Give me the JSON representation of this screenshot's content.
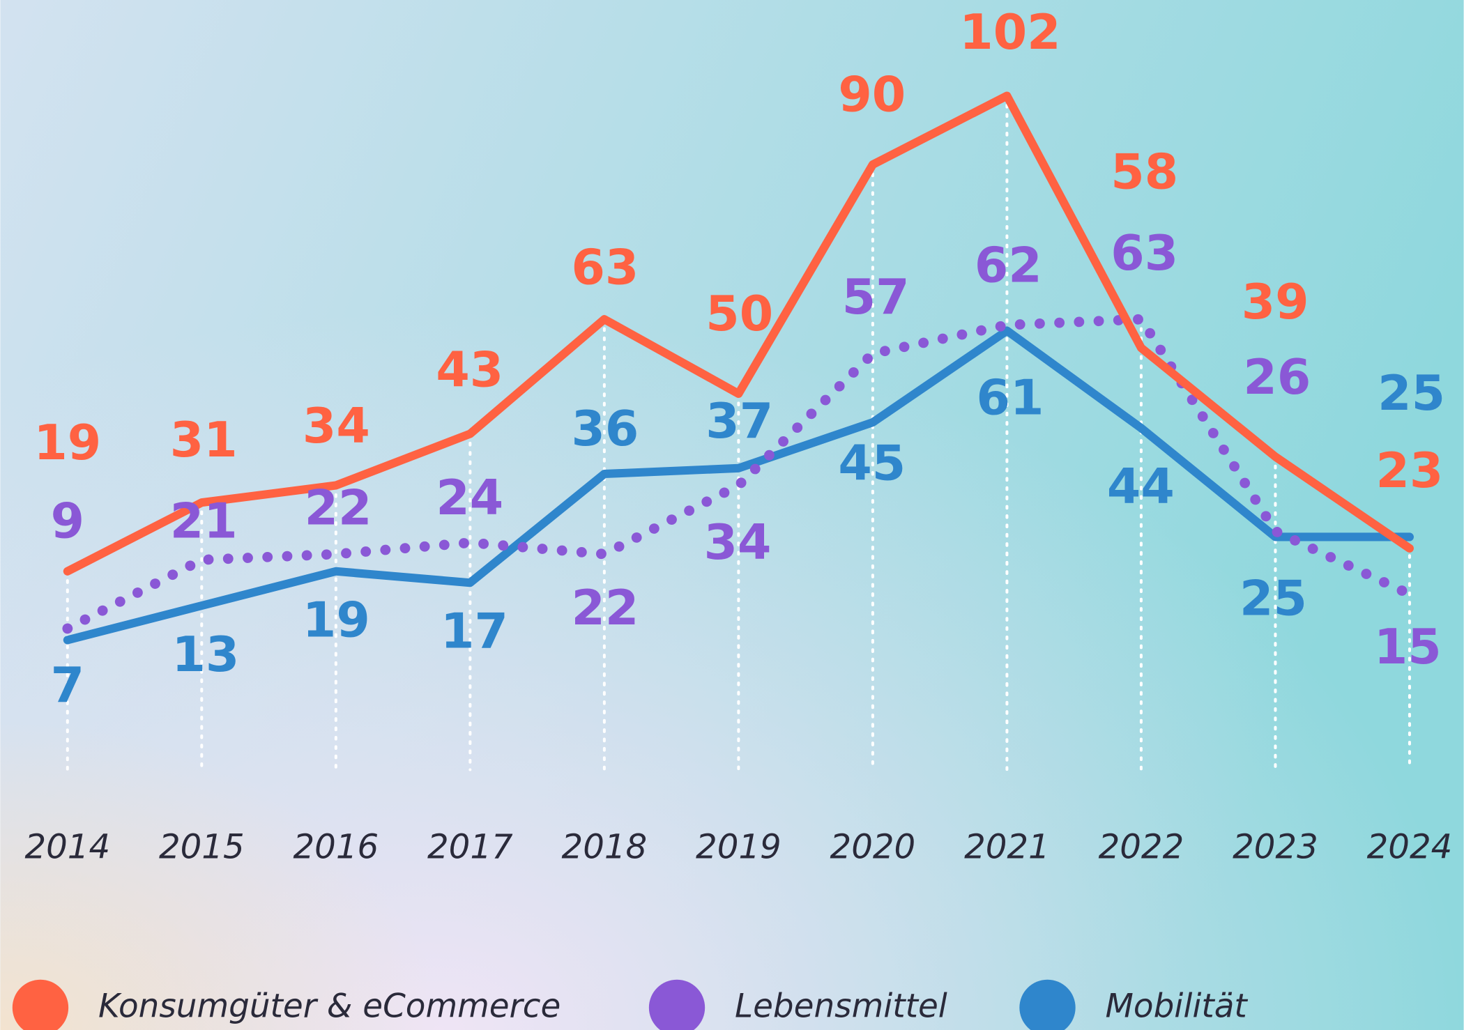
{
  "chart_data": {
    "type": "line",
    "categories": [
      "2014",
      "2015",
      "2016",
      "2017",
      "2018",
      "2019",
      "2020",
      "2021",
      "2022",
      "2023",
      "2024"
    ],
    "series": [
      {
        "name": "Konsumgüter & eCommerce",
        "color": "#ff6242",
        "values": [
          19,
          31,
          34,
          43,
          63,
          50,
          90,
          102,
          58,
          39,
          23
        ]
      },
      {
        "name": "Lebensmittel",
        "color": "#8a58d6",
        "values": [
          9,
          21,
          22,
          24,
          22,
          34,
          57,
          62,
          63,
          26,
          15
        ]
      },
      {
        "name": "Mobilität",
        "color": "#2f86cc",
        "values": [
          7,
          13,
          19,
          17,
          36,
          37,
          45,
          61,
          44,
          25,
          25
        ]
      }
    ]
  }
}
